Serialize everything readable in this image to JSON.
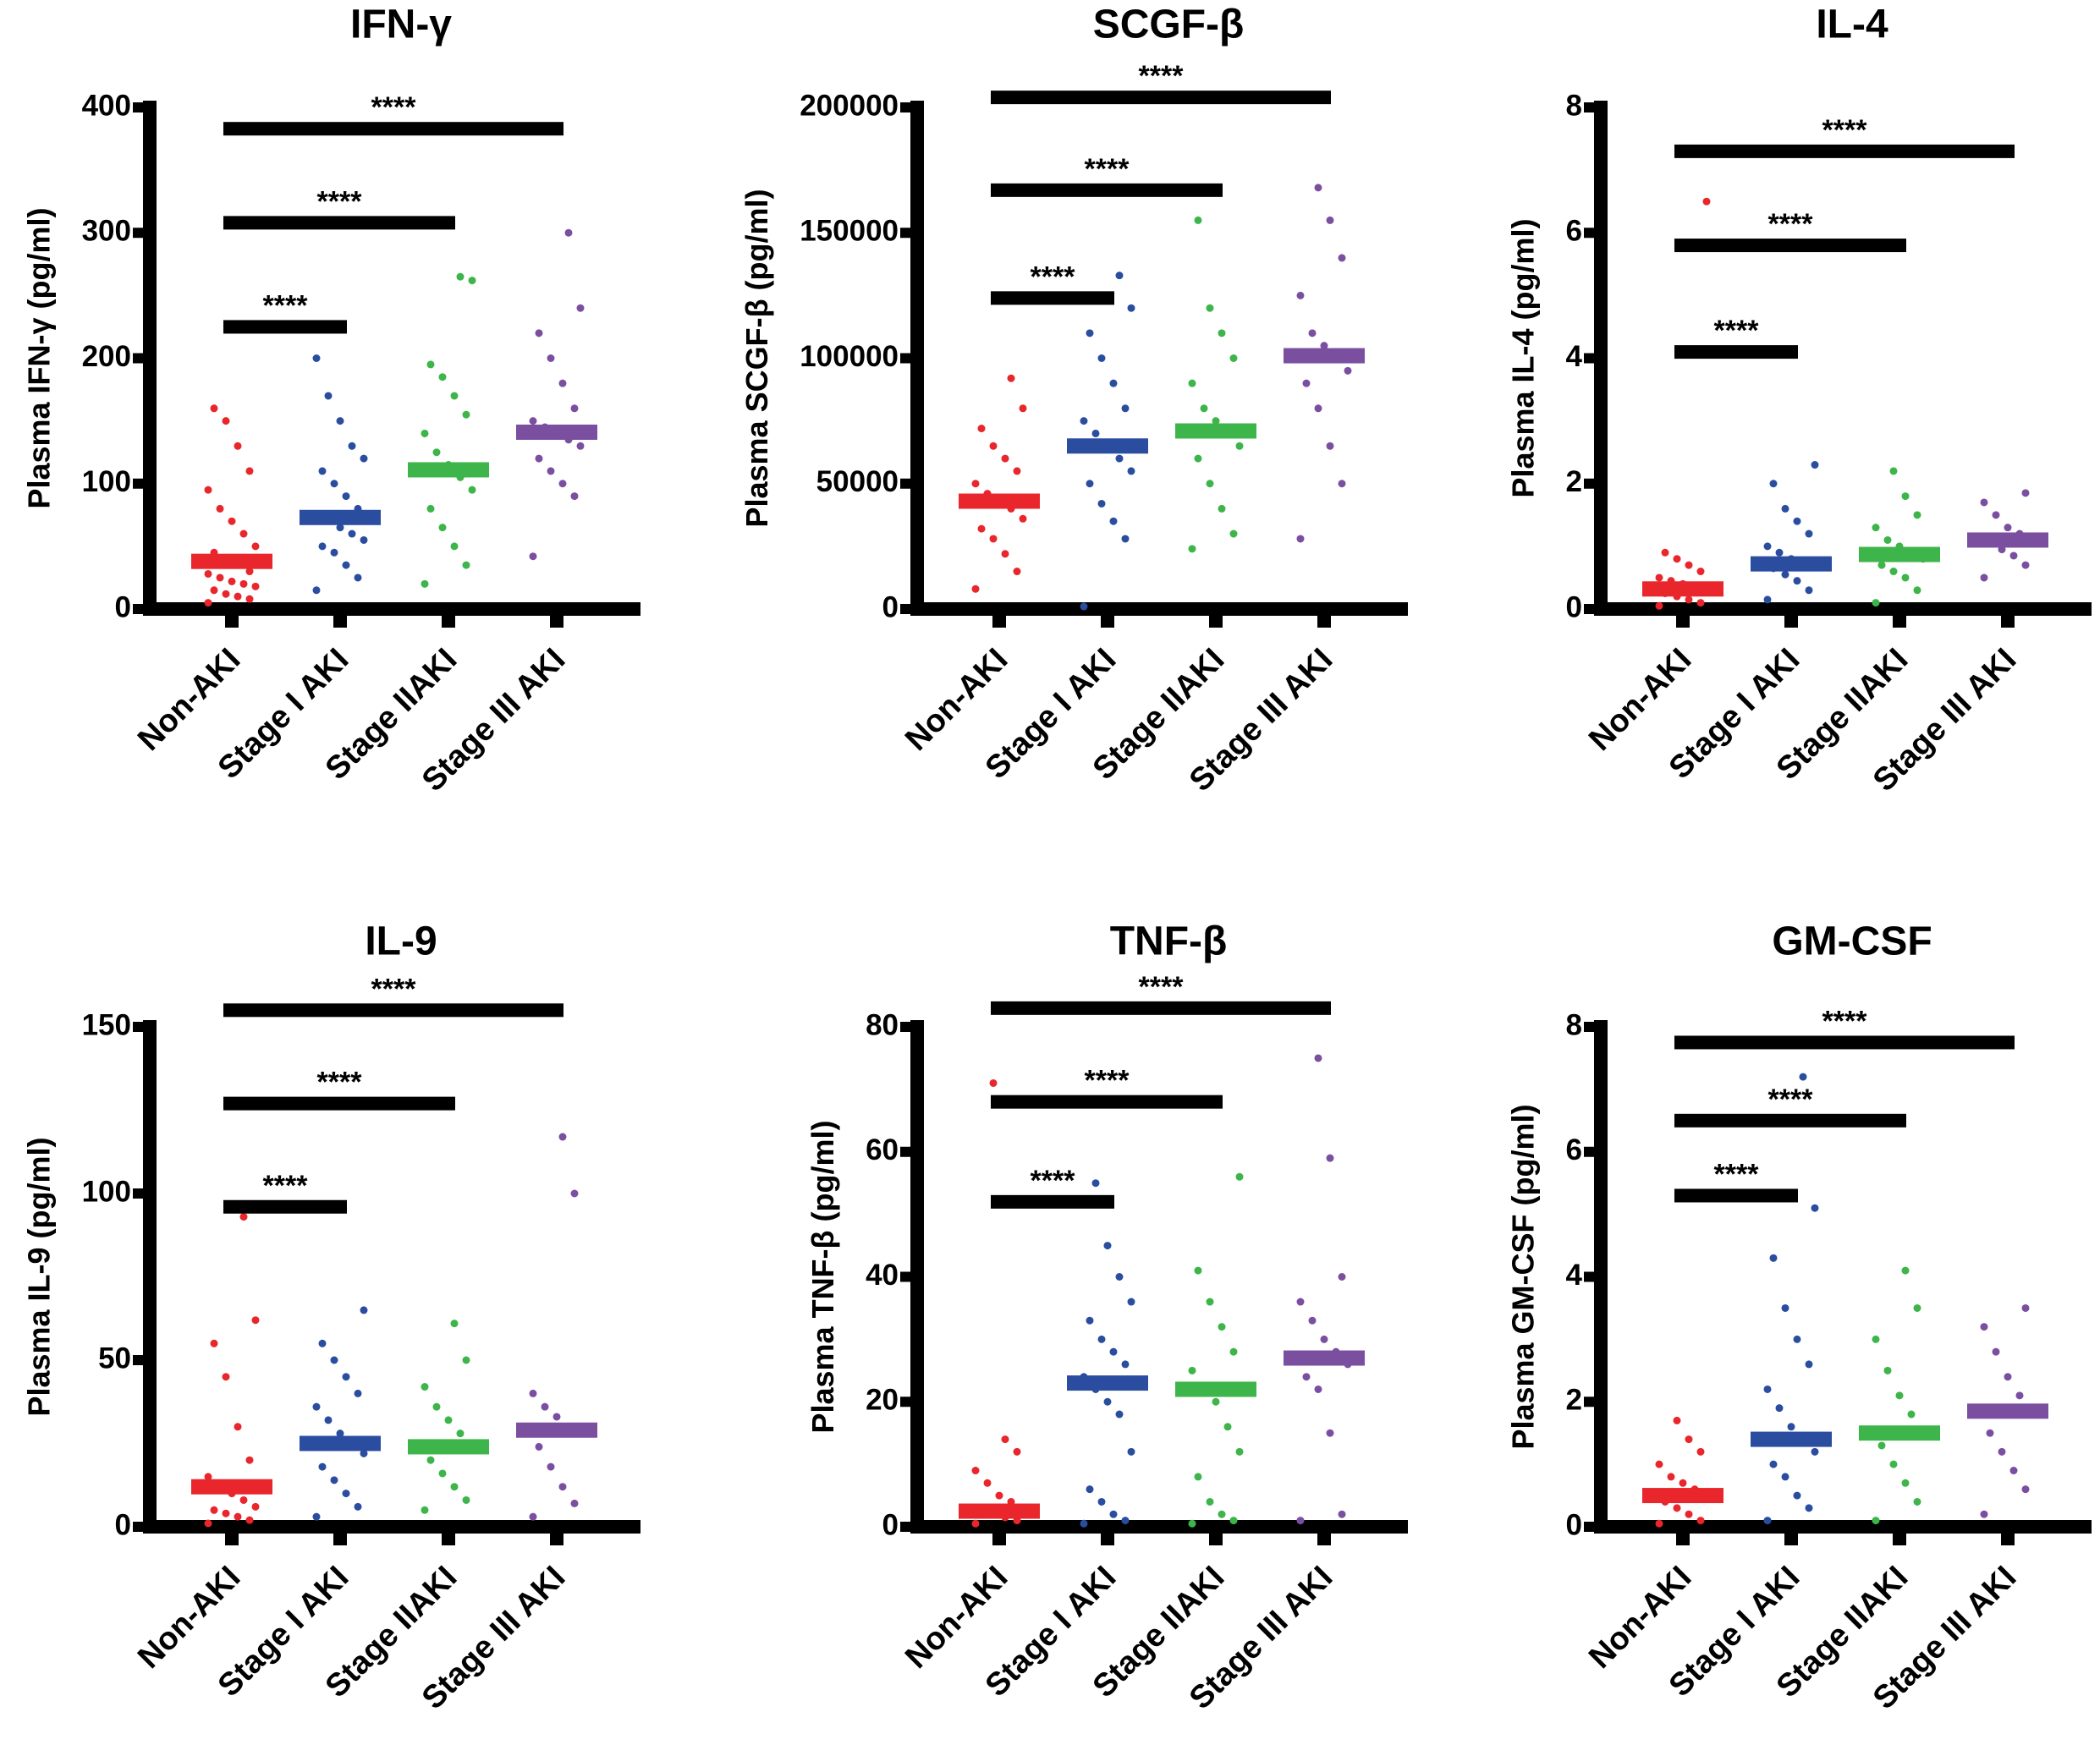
{
  "chart_data": [
    {
      "type": "strip",
      "title": "IFN-γ",
      "y_label": "Plasma IFN-γ (pg/ml)",
      "categories": [
        "Non-AKI",
        "Stage I AKI",
        "Stage IIAKI",
        "Stage III AKI"
      ],
      "colors": [
        "#e8262b",
        "#2a4da0",
        "#3db54a",
        "#7b4fa0"
      ],
      "points": [
        [
          5,
          8,
          10,
          12,
          15,
          18,
          20,
          22,
          25,
          28,
          30,
          35,
          40,
          45,
          50,
          60,
          70,
          80,
          95,
          110,
          130,
          150,
          160
        ],
        [
          15,
          25,
          35,
          45,
          50,
          55,
          60,
          65,
          70,
          75,
          80,
          90,
          100,
          110,
          120,
          130,
          150,
          170,
          200
        ],
        [
          20,
          35,
          50,
          65,
          80,
          95,
          105,
          115,
          125,
          140,
          155,
          170,
          185,
          195,
          262,
          265
        ],
        [
          42,
          90,
          100,
          110,
          120,
          130,
          135,
          140,
          145,
          150,
          160,
          180,
          200,
          220,
          240,
          300
        ]
      ],
      "means": [
        38,
        73,
        111,
        141
      ],
      "ylim": [
        0,
        400
      ],
      "yticks": [
        0,
        100,
        200,
        300,
        400
      ],
      "comparisons": [
        {
          "y": 225,
          "label": "****"
        },
        {
          "y": 308,
          "label": "****"
        },
        {
          "y": 383,
          "label": "****"
        }
      ]
    },
    {
      "type": "strip",
      "title": "SCGF-β",
      "y_label": "Plasma SCGF-β (pg/ml)",
      "categories": [
        "Non-AKI",
        "Stage I AKI",
        "Stage IIAKI",
        "Stage III AKI"
      ],
      "colors": [
        "#e8262b",
        "#2a4da0",
        "#3db54a",
        "#7b4fa0"
      ],
      "points": [
        [
          8000,
          15000,
          22000,
          28000,
          32000,
          36000,
          40000,
          43000,
          46000,
          50000,
          55000,
          60000,
          65000,
          72000,
          80000,
          92000
        ],
        [
          1000,
          28000,
          35000,
          42000,
          50000,
          55000,
          60000,
          65000,
          70000,
          75000,
          80000,
          90000,
          100000,
          110000,
          120000,
          133000
        ],
        [
          24000,
          30000,
          40000,
          50000,
          60000,
          65000,
          70000,
          75000,
          80000,
          90000,
          100000,
          110000,
          120000,
          155000
        ],
        [
          28000,
          50000,
          65000,
          80000,
          90000,
          95000,
          100000,
          105000,
          110000,
          125000,
          140000,
          155000,
          168000
        ]
      ],
      "means": [
        43000,
        65000,
        71000,
        101000
      ],
      "ylim": [
        0,
        200000
      ],
      "yticks": [
        0,
        50000,
        100000,
        150000,
        200000
      ],
      "comparisons": [
        {
          "y": 124000,
          "label": "****"
        },
        {
          "y": 167000,
          "label": "****"
        },
        {
          "y": 204000,
          "label": "****"
        }
      ]
    },
    {
      "type": "strip",
      "title": "IL-4",
      "y_label": "Plasma IL-4 (pg/ml)",
      "categories": [
        "Non-AKI",
        "Stage I AKI",
        "Stage IIAKI",
        "Stage III AKI"
      ],
      "colors": [
        "#e8262b",
        "#2a4da0",
        "#3db54a",
        "#7b4fa0"
      ],
      "points": [
        [
          0.05,
          0.1,
          0.15,
          0.2,
          0.25,
          0.3,
          0.35,
          0.4,
          0.45,
          0.5,
          0.6,
          0.7,
          0.8,
          0.9,
          6.5
        ],
        [
          0.15,
          0.3,
          0.45,
          0.55,
          0.65,
          0.7,
          0.75,
          0.8,
          0.9,
          1.0,
          1.2,
          1.4,
          1.6,
          2.0,
          2.3
        ],
        [
          0.1,
          0.3,
          0.5,
          0.6,
          0.7,
          0.8,
          0.9,
          1.0,
          1.1,
          1.3,
          1.5,
          1.8,
          2.2
        ],
        [
          0.5,
          0.7,
          0.85,
          0.95,
          1.05,
          1.1,
          1.2,
          1.3,
          1.5,
          1.7,
          1.85
        ]
      ],
      "means": [
        0.32,
        0.72,
        0.87,
        1.1
      ],
      "ylim": [
        0,
        8
      ],
      "yticks": [
        0,
        2,
        4,
        6,
        8
      ],
      "comparisons": [
        {
          "y": 4.1,
          "label": "****"
        },
        {
          "y": 5.8,
          "label": "****"
        },
        {
          "y": 7.3,
          "label": "****"
        }
      ]
    },
    {
      "type": "strip",
      "title": "IL-9",
      "y_label": "Plasma IL-9 (pg/ml)",
      "categories": [
        "Non-AKI",
        "Stage I AKI",
        "Stage IIAKI",
        "Stage III AKI"
      ],
      "colors": [
        "#e8262b",
        "#2a4da0",
        "#3db54a",
        "#7b4fa0"
      ],
      "points": [
        [
          1,
          2,
          3,
          4,
          5,
          6,
          8,
          10,
          12,
          15,
          20,
          30,
          45,
          55,
          62,
          93
        ],
        [
          3,
          6,
          10,
          14,
          18,
          22,
          25,
          28,
          32,
          36,
          40,
          45,
          50,
          55,
          65
        ],
        [
          5,
          8,
          12,
          16,
          20,
          24,
          28,
          32,
          36,
          42,
          50,
          61
        ],
        [
          3,
          7,
          12,
          18,
          24,
          28,
          30,
          33,
          36,
          40,
          100,
          117
        ]
      ],
      "means": [
        12,
        25,
        24,
        29
      ],
      "ylim": [
        0,
        150
      ],
      "yticks": [
        0,
        50,
        100,
        150
      ],
      "comparisons": [
        {
          "y": 96,
          "label": "****"
        },
        {
          "y": 127,
          "label": "****"
        },
        {
          "y": 155,
          "label": "****"
        }
      ]
    },
    {
      "type": "strip",
      "title": "TNF-β",
      "y_label": "Plasma TNF-β (pg/ml)",
      "categories": [
        "Non-AKI",
        "Stage I AKI",
        "Stage IIAKI",
        "Stage III AKI"
      ],
      "colors": [
        "#e8262b",
        "#2a4da0",
        "#3db54a",
        "#7b4fa0"
      ],
      "points": [
        [
          0.5,
          1,
          1.5,
          2,
          2.5,
          3,
          4,
          5,
          7,
          9,
          12,
          14,
          71
        ],
        [
          0.5,
          1,
          2,
          4,
          6,
          12,
          18,
          20,
          22,
          24,
          26,
          28,
          30,
          33,
          36,
          40,
          45,
          55
        ],
        [
          0.5,
          1,
          2,
          4,
          8,
          12,
          16,
          20,
          22,
          25,
          28,
          32,
          36,
          41,
          56
        ],
        [
          1,
          2,
          15,
          22,
          24,
          26,
          28,
          30,
          33,
          36,
          40,
          59,
          75
        ]
      ],
      "means": [
        2.5,
        23,
        22,
        27
      ],
      "ylim": [
        0,
        80
      ],
      "yticks": [
        0,
        20,
        40,
        60,
        80
      ],
      "comparisons": [
        {
          "y": 52,
          "label": "****"
        },
        {
          "y": 68,
          "label": "****"
        },
        {
          "y": 83,
          "label": "****"
        }
      ]
    },
    {
      "type": "strip",
      "title": "GM-CSF",
      "y_label": "Plasma GM-CSF (pg/ml)",
      "categories": [
        "Non-AKI",
        "Stage I AKI",
        "Stage IIAKI",
        "Stage III AKI"
      ],
      "colors": [
        "#e8262b",
        "#2a4da0",
        "#3db54a",
        "#7b4fa0"
      ],
      "points": [
        [
          0.05,
          0.1,
          0.2,
          0.3,
          0.4,
          0.5,
          0.6,
          0.7,
          0.8,
          1.0,
          1.2,
          1.4,
          1.7
        ],
        [
          0.1,
          0.3,
          0.5,
          0.8,
          1.0,
          1.2,
          1.4,
          1.6,
          1.9,
          2.2,
          2.6,
          3.0,
          3.5,
          4.3,
          5.1,
          7.2
        ],
        [
          0.1,
          0.4,
          0.7,
          1.0,
          1.3,
          1.5,
          1.8,
          2.1,
          2.5,
          3.0,
          3.5,
          4.1
        ],
        [
          0.2,
          0.6,
          0.9,
          1.2,
          1.5,
          1.8,
          2.1,
          2.4,
          2.8,
          3.2,
          3.5
        ]
      ],
      "means": [
        0.5,
        1.4,
        1.5,
        1.85
      ],
      "ylim": [
        0,
        8
      ],
      "yticks": [
        0,
        2,
        4,
        6,
        8
      ],
      "comparisons": [
        {
          "y": 5.3,
          "label": "****"
        },
        {
          "y": 6.5,
          "label": "****"
        },
        {
          "y": 7.75,
          "label": "****"
        }
      ]
    }
  ]
}
